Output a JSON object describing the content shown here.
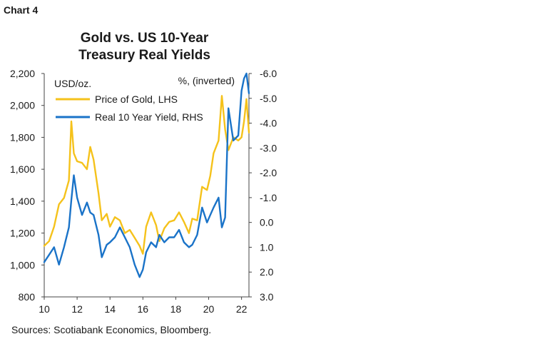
{
  "header": {
    "chart_label": "Chart 4"
  },
  "source": "Sources: Scotiabank Economics, Bloomberg.",
  "colors": {
    "gold": "#f5c21b",
    "real_yield": "#1a73c8",
    "axis": "#444444"
  },
  "chart_data": {
    "type": "line",
    "title_lines": [
      "Gold vs. US 10-Year",
      "Treasury Real Yields"
    ],
    "left_axis": {
      "unit": "USD/oz.",
      "ylim": [
        800,
        2200
      ],
      "ticks": [
        "800",
        "1,000",
        "1,200",
        "1,400",
        "1,600",
        "1,800",
        "2,000",
        "2,200"
      ]
    },
    "right_axis": {
      "unit": "%, (inverted)",
      "inverted": true,
      "ylim": [
        3.0,
        -6.0
      ],
      "ticks": [
        "3.0",
        "2.0",
        "1.0",
        "0.0",
        "-1.0",
        "-2.0",
        "-3.0",
        "-4.0",
        "-5.0",
        "-6.0"
      ]
    },
    "x_axis": {
      "xlim": [
        2010.0,
        2022.45
      ],
      "ticks": [
        "10",
        "12",
        "14",
        "16",
        "18",
        "20",
        "22"
      ]
    },
    "legend": {
      "position": "top-left"
    },
    "series": [
      {
        "name": "Price of Gold, LHS",
        "axis": "left",
        "x": [
          2010.0,
          2010.3,
          2010.6,
          2010.9,
          2011.2,
          2011.5,
          2011.65,
          2011.8,
          2012.0,
          2012.3,
          2012.6,
          2012.8,
          2013.0,
          2013.3,
          2013.5,
          2013.8,
          2014.0,
          2014.3,
          2014.6,
          2014.9,
          2015.2,
          2015.5,
          2015.8,
          2016.0,
          2016.2,
          2016.5,
          2016.8,
          2017.0,
          2017.3,
          2017.6,
          2017.9,
          2018.2,
          2018.5,
          2018.8,
          2019.0,
          2019.3,
          2019.6,
          2019.9,
          2020.1,
          2020.3,
          2020.6,
          2020.8,
          2021.0,
          2021.2,
          2021.5,
          2021.8,
          2022.0,
          2022.15,
          2022.3,
          2022.45
        ],
        "values": [
          1120,
          1150,
          1240,
          1380,
          1420,
          1530,
          1900,
          1700,
          1650,
          1640,
          1600,
          1740,
          1660,
          1450,
          1280,
          1320,
          1240,
          1300,
          1280,
          1200,
          1220,
          1170,
          1120,
          1070,
          1240,
          1330,
          1250,
          1150,
          1230,
          1270,
          1280,
          1330,
          1270,
          1200,
          1290,
          1280,
          1490,
          1470,
          1560,
          1700,
          1780,
          2060,
          1850,
          1720,
          1800,
          1780,
          1800,
          1900,
          2040,
          1830
        ]
      },
      {
        "name": "Real 10 Year Yield, RHS",
        "axis": "right",
        "x": [
          2010.0,
          2010.3,
          2010.6,
          2010.9,
          2011.2,
          2011.5,
          2011.65,
          2011.8,
          2012.0,
          2012.3,
          2012.6,
          2012.8,
          2013.0,
          2013.3,
          2013.5,
          2013.8,
          2014.0,
          2014.3,
          2014.6,
          2014.9,
          2015.2,
          2015.5,
          2015.8,
          2016.0,
          2016.2,
          2016.5,
          2016.8,
          2017.0,
          2017.3,
          2017.6,
          2017.9,
          2018.2,
          2018.5,
          2018.8,
          2019.0,
          2019.3,
          2019.6,
          2019.9,
          2020.1,
          2020.3,
          2020.6,
          2020.8,
          2021.0,
          2021.2,
          2021.5,
          2021.8,
          2022.0,
          2022.15,
          2022.3,
          2022.45
        ],
        "values": [
          1.6,
          1.3,
          1.0,
          1.7,
          1.0,
          0.2,
          -0.9,
          -1.9,
          -1.0,
          -0.3,
          -0.8,
          -0.4,
          -0.3,
          0.5,
          1.4,
          0.9,
          0.8,
          0.6,
          0.2,
          0.6,
          1.0,
          1.7,
          2.2,
          1.9,
          1.2,
          0.8,
          1.0,
          0.5,
          0.8,
          0.6,
          0.6,
          0.3,
          0.8,
          1.0,
          0.9,
          0.5,
          -0.6,
          0.0,
          -0.3,
          -0.6,
          -1.0,
          0.2,
          -0.2,
          -4.6,
          -3.3,
          -3.5,
          -5.3,
          -5.8,
          -6.0,
          -5.2
        ]
      }
    ]
  }
}
